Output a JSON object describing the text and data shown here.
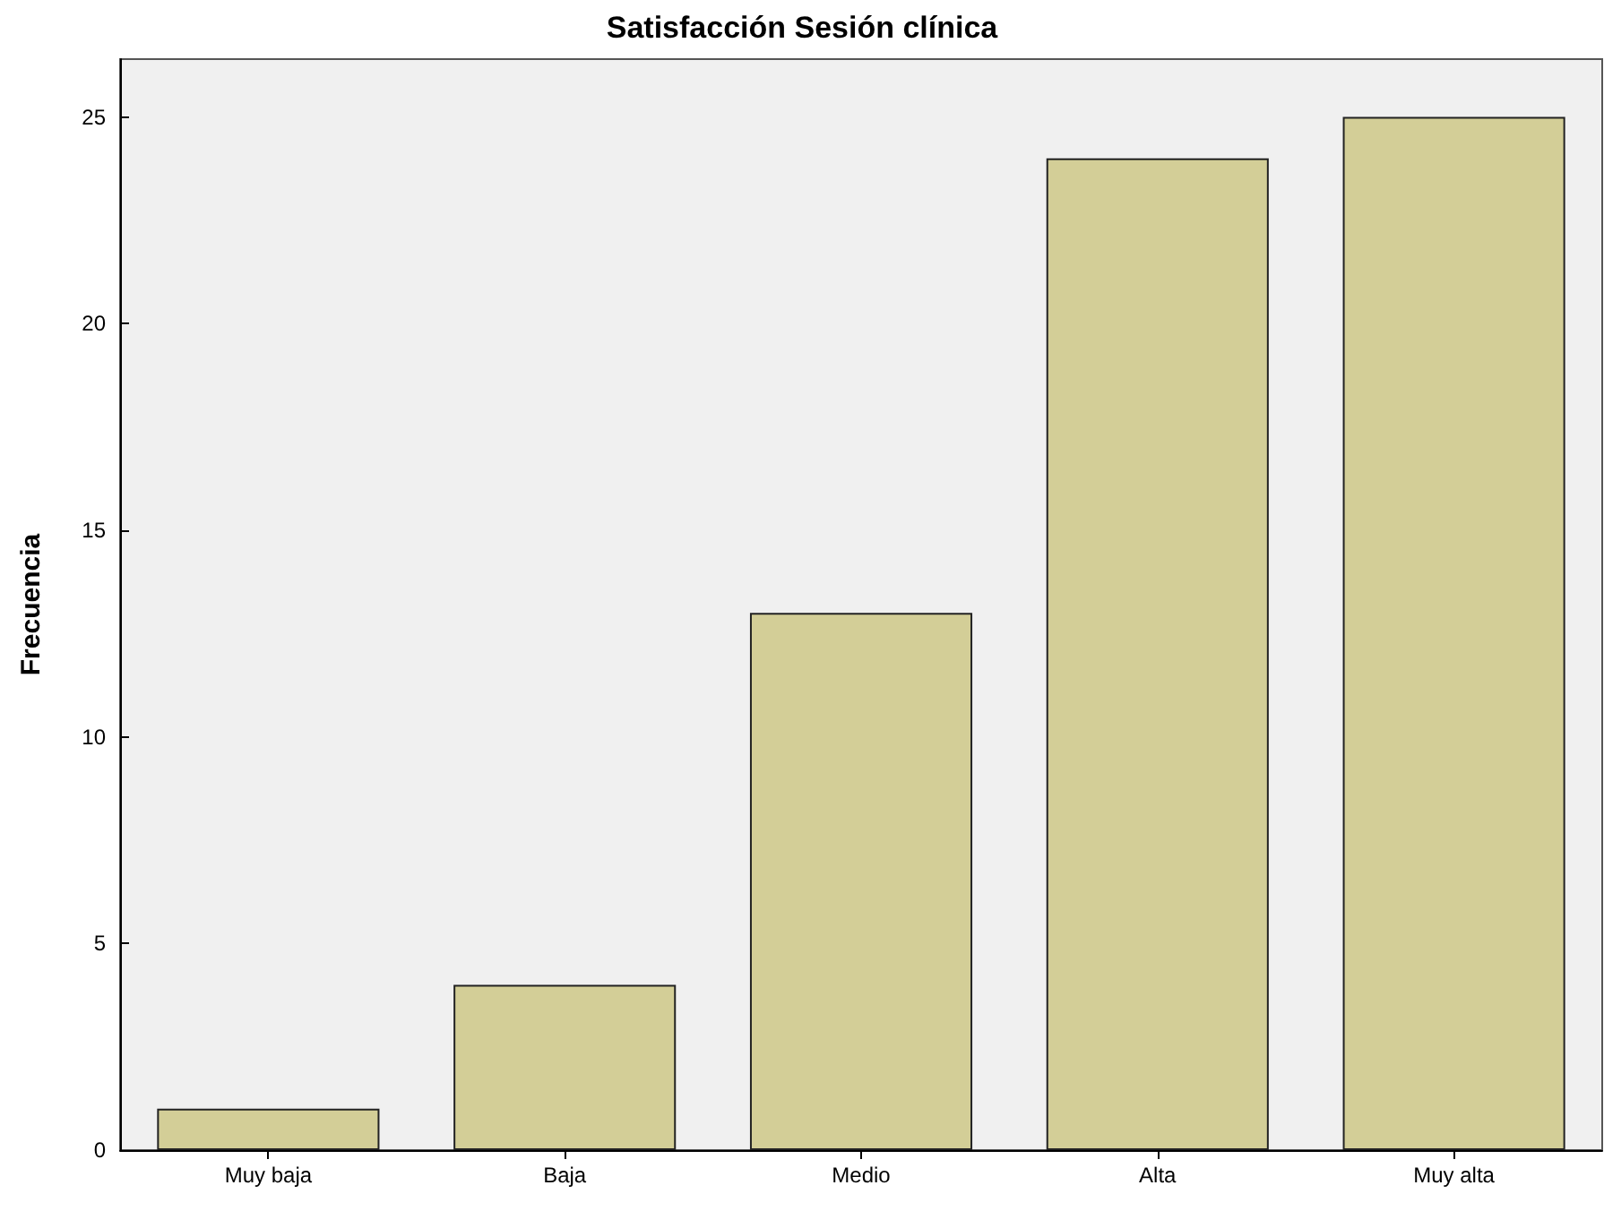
{
  "chart_data": {
    "type": "bar",
    "title": "Satisfacción Sesión clínica",
    "ylabel": "Frecuencia",
    "categories": [
      "Muy baja",
      "Baja",
      "Medio",
      "Alta",
      "Muy alta"
    ],
    "values": [
      1,
      4,
      13,
      24,
      25
    ],
    "color": "#d3ce97",
    "ylim": [
      0,
      26.4
    ],
    "yticks": [
      0,
      5,
      10,
      15,
      20,
      25
    ],
    "grid": false
  }
}
